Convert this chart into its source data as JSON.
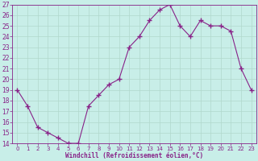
{
  "x": [
    0,
    1,
    2,
    3,
    4,
    5,
    6,
    7,
    8,
    9,
    10,
    11,
    12,
    13,
    14,
    15,
    16,
    17,
    18,
    19,
    20,
    21,
    22,
    23
  ],
  "y": [
    19,
    17.5,
    15.5,
    15,
    14.5,
    14,
    14,
    17.5,
    18.5,
    19.5,
    20,
    23,
    24,
    25.5,
    26.5,
    27,
    25,
    24,
    25.5,
    25,
    25,
    24.5,
    21,
    19
  ],
  "line_color": "#882288",
  "marker": "+",
  "marker_size": 4,
  "bg_color": "#c8eee8",
  "grid_color": "#b0d8cc",
  "xlabel": "Windchill (Refroidissement éolien,°C)",
  "ylim": [
    14,
    27
  ],
  "xlim": [
    -0.5,
    23.5
  ],
  "yticks": [
    14,
    15,
    16,
    17,
    18,
    19,
    20,
    21,
    22,
    23,
    24,
    25,
    26,
    27
  ],
  "xticks": [
    0,
    1,
    2,
    3,
    4,
    5,
    6,
    7,
    8,
    9,
    10,
    11,
    12,
    13,
    14,
    15,
    16,
    17,
    18,
    19,
    20,
    21,
    22,
    23
  ],
  "axis_color": "#882288",
  "tick_color": "#882288",
  "xlabel_fontsize": 5.5,
  "ytick_fontsize": 5.5,
  "xtick_fontsize": 5.0,
  "linewidth": 0.8
}
